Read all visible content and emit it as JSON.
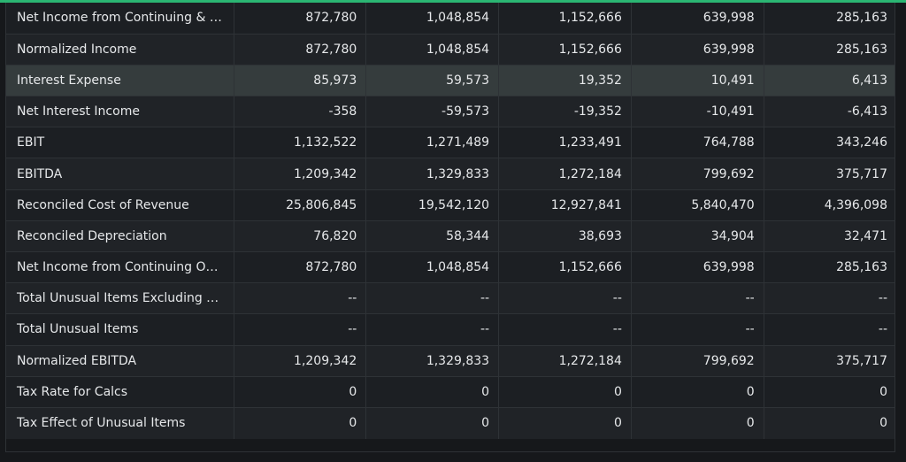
{
  "accent_color": "#2bb673",
  "highlight_color": "#353c3d",
  "rows": [
    {
      "label": "Net Income from Continuing & D...",
      "values": [
        "872,780",
        "1,048,854",
        "1,152,666",
        "639,998",
        "285,163"
      ]
    },
    {
      "label": "Normalized Income",
      "values": [
        "872,780",
        "1,048,854",
        "1,152,666",
        "639,998",
        "285,163"
      ]
    },
    {
      "label": "Interest Expense",
      "values": [
        "85,973",
        "59,573",
        "19,352",
        "10,491",
        "6,413"
      ],
      "highlighted": true
    },
    {
      "label": "Net Interest Income",
      "values": [
        "-358",
        "-59,573",
        "-19,352",
        "-10,491",
        "-6,413"
      ]
    },
    {
      "label": "EBIT",
      "values": [
        "1,132,522",
        "1,271,489",
        "1,233,491",
        "764,788",
        "343,246"
      ]
    },
    {
      "label": "EBITDA",
      "values": [
        "1,209,342",
        "1,329,833",
        "1,272,184",
        "799,692",
        "375,717"
      ]
    },
    {
      "label": "Reconciled Cost of Revenue",
      "values": [
        "25,806,845",
        "19,542,120",
        "12,927,841",
        "5,840,470",
        "4,396,098"
      ]
    },
    {
      "label": "Reconciled Depreciation",
      "values": [
        "76,820",
        "58,344",
        "38,693",
        "34,904",
        "32,471"
      ]
    },
    {
      "label": "Net Income from Continuing Op...",
      "values": [
        "872,780",
        "1,048,854",
        "1,152,666",
        "639,998",
        "285,163"
      ]
    },
    {
      "label": "Total Unusual Items Excluding G...",
      "values": [
        "--",
        "--",
        "--",
        "--",
        "--"
      ]
    },
    {
      "label": "Total Unusual Items",
      "values": [
        "--",
        "--",
        "--",
        "--",
        "--"
      ]
    },
    {
      "label": "Normalized EBITDA",
      "values": [
        "1,209,342",
        "1,329,833",
        "1,272,184",
        "799,692",
        "375,717"
      ]
    },
    {
      "label": "Tax Rate for Calcs",
      "values": [
        "0",
        "0",
        "0",
        "0",
        "0"
      ]
    },
    {
      "label": "Tax Effect of Unusual Items",
      "values": [
        "0",
        "0",
        "0",
        "0",
        "0"
      ]
    }
  ]
}
